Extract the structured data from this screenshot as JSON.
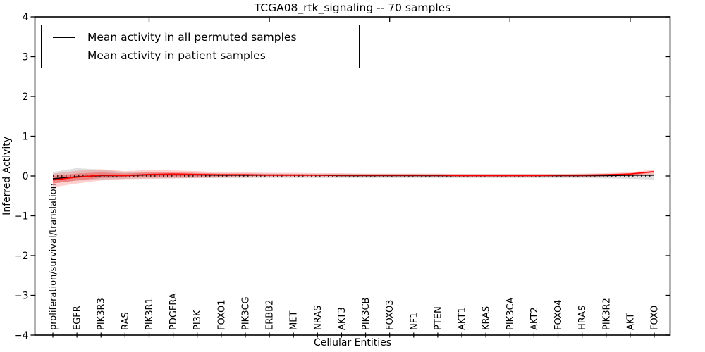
{
  "figure": {
    "title": "TCGA08_rtk_signaling -- 70 samples",
    "xlabel": "Cellular Entities",
    "ylabel": "Inferred Activity"
  },
  "legend": {
    "items": [
      {
        "label": "Mean activity in all permuted samples",
        "color": "#000000"
      },
      {
        "label": "Mean activity in patient samples",
        "color": "#ff0000"
      }
    ]
  },
  "chart_data": {
    "type": "line",
    "title": "TCGA08_rtk_signaling -- 70 samples",
    "xlabel": "Cellular Entities",
    "ylabel": "Inferred Activity",
    "ylim": [
      -4,
      4
    ],
    "yticks": [
      -4,
      -3,
      -2,
      -1,
      0,
      1,
      2,
      3,
      4
    ],
    "grid": false,
    "legend_position": "upper left",
    "zero_line": {
      "value": 0,
      "style": "dotted",
      "color": "#000000"
    },
    "categories": [
      "proliferation/survival/translation",
      "EGFR",
      "PIK3R3",
      "RAS",
      "PIK3R1",
      "PDGFRA",
      "PI3K",
      "FOXO1",
      "PIK3CG",
      "ERBB2",
      "MET",
      "NRAS",
      "AKT3",
      "PIK3CB",
      "FOXO3",
      "NF1",
      "PTEN",
      "AKT1",
      "KRAS",
      "PIK3CA",
      "AKT2",
      "FOXO4",
      "HRAS",
      "PIK3R2",
      "AKT",
      "FOXO"
    ],
    "series": [
      {
        "name": "Mean activity in all permuted samples",
        "color": "#000000",
        "values": [
          -0.07,
          -0.02,
          0.01,
          0.01,
          0.03,
          0.03,
          0.03,
          0.02,
          0.02,
          0.02,
          0.02,
          0.02,
          0.01,
          0.01,
          0.01,
          0.01,
          0.01,
          0.01,
          0.01,
          0.01,
          0.01,
          0.01,
          0.01,
          0.01,
          0.02,
          0.02
        ]
      },
      {
        "name": "Mean activity in patient samples",
        "color": "#ff0000",
        "values": [
          -0.1,
          -0.03,
          0.02,
          0.01,
          0.04,
          0.05,
          0.04,
          0.03,
          0.03,
          0.02,
          0.02,
          0.02,
          0.02,
          0.02,
          0.02,
          0.02,
          0.02,
          0.01,
          0.01,
          0.01,
          0.01,
          0.02,
          0.02,
          0.03,
          0.05,
          0.11
        ]
      }
    ],
    "bands": [
      {
        "name": "permuted-samples-band",
        "color": "#000000",
        "opacity": 0.12,
        "upper": [
          0.1,
          0.2,
          0.16,
          0.1,
          0.08,
          0.07,
          0.06,
          0.06,
          0.06,
          0.06,
          0.05,
          0.05,
          0.05,
          0.05,
          0.05,
          0.05,
          0.05,
          0.05,
          0.05,
          0.05,
          0.05,
          0.05,
          0.05,
          0.05,
          0.05,
          0.06
        ],
        "lower": [
          -0.18,
          -0.12,
          -0.09,
          -0.07,
          -0.06,
          -0.06,
          -0.05,
          -0.05,
          -0.05,
          -0.05,
          -0.05,
          -0.05,
          -0.05,
          -0.05,
          -0.05,
          -0.05,
          -0.05,
          -0.05,
          -0.05,
          -0.05,
          -0.05,
          -0.05,
          -0.05,
          -0.06,
          -0.07,
          -0.09
        ]
      },
      {
        "name": "patient-samples-outer-band",
        "color": "#ff0000",
        "opacity": 0.18,
        "upper": [
          0.06,
          0.13,
          0.17,
          0.12,
          0.15,
          0.14,
          0.12,
          0.1,
          0.09,
          0.08,
          0.08,
          0.07,
          0.07,
          0.06,
          0.06,
          0.06,
          0.06,
          0.05,
          0.05,
          0.05,
          0.05,
          0.05,
          0.06,
          0.07,
          0.09,
          0.16
        ],
        "lower": [
          -0.28,
          -0.19,
          -0.11,
          -0.08,
          -0.07,
          -0.06,
          -0.05,
          -0.04,
          -0.04,
          -0.03,
          -0.03,
          -0.03,
          -0.03,
          -0.03,
          -0.02,
          -0.02,
          -0.02,
          -0.02,
          -0.02,
          -0.02,
          -0.02,
          -0.02,
          -0.02,
          -0.01,
          0.0,
          0.03
        ]
      },
      {
        "name": "patient-samples-inner-band",
        "color": "#ff0000",
        "opacity": 0.28,
        "upper": [
          0.0,
          0.06,
          0.09,
          0.06,
          0.09,
          0.09,
          0.08,
          0.06,
          0.06,
          0.05,
          0.05,
          0.04,
          0.04,
          0.04,
          0.04,
          0.04,
          0.03,
          0.03,
          0.03,
          0.03,
          0.03,
          0.03,
          0.04,
          0.05,
          0.07,
          0.13
        ],
        "lower": [
          -0.19,
          -0.11,
          -0.05,
          -0.04,
          -0.02,
          -0.01,
          -0.01,
          -0.01,
          0.0,
          0.0,
          0.0,
          0.0,
          0.0,
          0.0,
          0.0,
          0.0,
          -0.01,
          -0.01,
          -0.01,
          -0.01,
          -0.01,
          -0.01,
          -0.01,
          0.0,
          0.02,
          0.08
        ]
      }
    ],
    "top_tick_indices": [
      4,
      9,
      14,
      19,
      24
    ]
  }
}
